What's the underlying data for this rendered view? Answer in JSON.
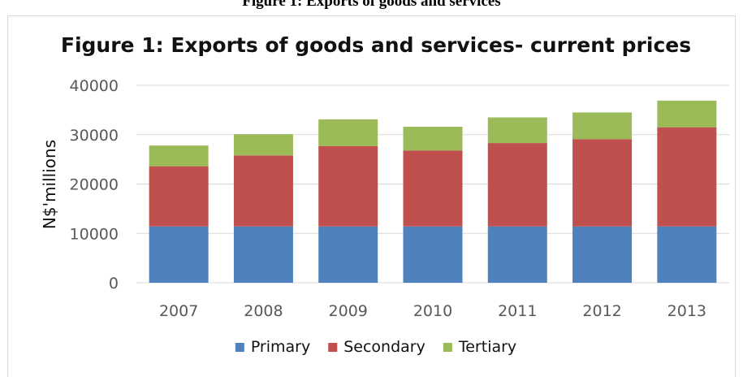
{
  "caption": "Figure 1: Exports of goods and services",
  "colors": {
    "primary": "#4f81bd",
    "secondary": "#c0504d",
    "tertiary": "#9bbb59",
    "grid": "#d9d9d9"
  },
  "chart_data": {
    "type": "bar",
    "stacked": true,
    "title": "Figure 1: Exports of goods and services- current prices",
    "xlabel": "",
    "ylabel": "N$'millions",
    "ylim": [
      0,
      40000
    ],
    "yticks": [
      0,
      10000,
      20000,
      30000,
      40000
    ],
    "grid": true,
    "legend_position": "bottom",
    "categories": [
      "2007",
      "2008",
      "2009",
      "2010",
      "2011",
      "2012",
      "2013"
    ],
    "series": [
      {
        "name": "Primary",
        "values": [
          11400,
          11400,
          11400,
          11400,
          11400,
          11400,
          11400
        ]
      },
      {
        "name": "Secondary",
        "values": [
          12200,
          14400,
          16300,
          15400,
          16900,
          17700,
          20100
        ]
      },
      {
        "name": "Tertiary",
        "values": [
          4200,
          4300,
          5400,
          4800,
          5200,
          5400,
          5400
        ]
      }
    ]
  }
}
